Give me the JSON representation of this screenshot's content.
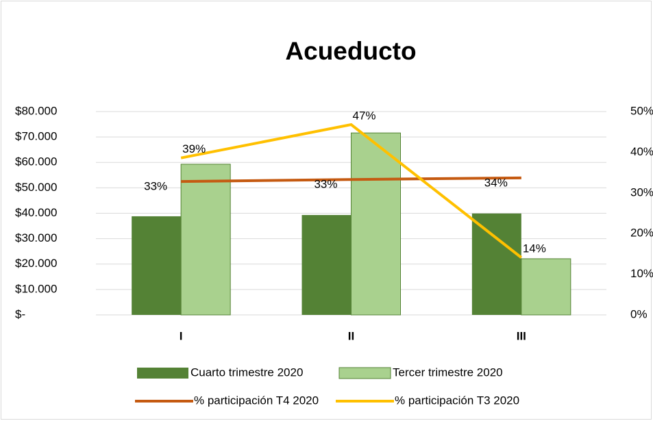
{
  "chart_data": {
    "type": "bar",
    "title": "Acueducto",
    "categories": [
      "I",
      "II",
      "III"
    ],
    "series": [
      {
        "name": "Cuarto trimestre 2020",
        "type": "bar",
        "color": "#548235",
        "values": [
          38800,
          39300,
          39900
        ]
      },
      {
        "name": "Tercer trimestre 2020",
        "type": "bar",
        "color": "#a9d18e",
        "values": [
          59300,
          71600,
          22100
        ]
      },
      {
        "name": "% participación T4 2020",
        "type": "line",
        "axis": "y2",
        "color": "#c55a11",
        "values": [
          32.8,
          33.3,
          33.7
        ],
        "value_labels": [
          "33%",
          "33%",
          "34%"
        ]
      },
      {
        "name": "% participación T3 2020",
        "type": "line",
        "axis": "y2",
        "color": "#ffc000",
        "values": [
          38.6,
          46.8,
          14.1
        ],
        "value_labels": [
          "39%",
          "47%",
          "14%"
        ]
      }
    ],
    "ylim": [
      0,
      80000
    ],
    "yticks": [
      {
        "value": 0,
        "label": "$-"
      },
      {
        "value": 10000,
        "label": "$10.000"
      },
      {
        "value": 20000,
        "label": "$20.000"
      },
      {
        "value": 30000,
        "label": "$30.000"
      },
      {
        "value": 40000,
        "label": "$40.000"
      },
      {
        "value": 50000,
        "label": "$50.000"
      },
      {
        "value": 60000,
        "label": "$60.000"
      },
      {
        "value": 70000,
        "label": "$70.000"
      },
      {
        "value": 80000,
        "label": "$80.000"
      }
    ],
    "y2lim": [
      0,
      50
    ],
    "y2ticks": [
      {
        "value": 0,
        "label": "0%"
      },
      {
        "value": 10,
        "label": "10%"
      },
      {
        "value": 20,
        "label": "20%"
      },
      {
        "value": 30,
        "label": "30%"
      },
      {
        "value": 40,
        "label": "40%"
      },
      {
        "value": 50,
        "label": "50%"
      }
    ],
    "grid": true,
    "legend": "bottom"
  }
}
